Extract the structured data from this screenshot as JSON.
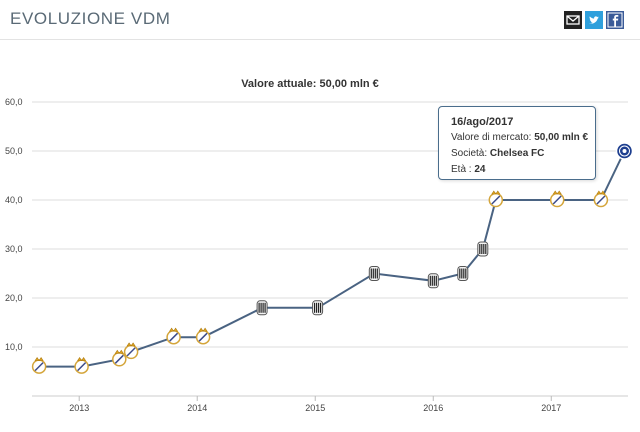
{
  "header": {
    "title": "EVOLUZIONE VDM",
    "share": [
      {
        "name": "email-share-icon",
        "color": "#222222"
      },
      {
        "name": "twitter-share-icon",
        "color": "#2fa0dc"
      },
      {
        "name": "facebook-share-icon",
        "color": "#3b5b98"
      }
    ]
  },
  "chart_data": {
    "type": "line",
    "title": "Valore attuale: 50,00 mln €",
    "xlabel": "",
    "ylabel": "",
    "ylim": [
      0,
      60
    ],
    "yticks": [
      "10,0",
      "20,0",
      "30,0",
      "40,0",
      "50,0",
      "60,0"
    ],
    "ytick_values": [
      10,
      20,
      30,
      40,
      50,
      60
    ],
    "xlim": [
      2012.6,
      2017.65
    ],
    "xticks": [
      "2013",
      "2014",
      "2015",
      "2016",
      "2017"
    ],
    "xtick_values": [
      2013,
      2014,
      2015,
      2016,
      2017
    ],
    "grid": true,
    "line_color": "#4a6382",
    "series": [
      {
        "values": [
          {
            "x": 2012.66,
            "y": 6,
            "club": "Real Madrid"
          },
          {
            "x": 2013.02,
            "y": 6,
            "club": "Real Madrid"
          },
          {
            "x": 2013.34,
            "y": 7.5,
            "club": "Real Madrid"
          },
          {
            "x": 2013.44,
            "y": 9,
            "club": "Real Madrid"
          },
          {
            "x": 2013.8,
            "y": 12,
            "club": "Real Madrid"
          },
          {
            "x": 2014.05,
            "y": 12,
            "club": "Real Madrid"
          },
          {
            "x": 2014.55,
            "y": 18,
            "club": "Juventus"
          },
          {
            "x": 2015.02,
            "y": 18,
            "club": "Juventus"
          },
          {
            "x": 2015.5,
            "y": 25,
            "club": "Juventus"
          },
          {
            "x": 2016.0,
            "y": 23.5,
            "club": "Juventus"
          },
          {
            "x": 2016.25,
            "y": 25,
            "club": "Juventus"
          },
          {
            "x": 2016.42,
            "y": 30,
            "club": "Juventus"
          },
          {
            "x": 2016.53,
            "y": 40,
            "club": "Real Madrid"
          },
          {
            "x": 2017.05,
            "y": 40,
            "club": "Real Madrid"
          },
          {
            "x": 2017.42,
            "y": 40,
            "club": "Real Madrid"
          },
          {
            "x": 2017.62,
            "y": 50,
            "club": "Chelsea FC"
          }
        ]
      }
    ]
  },
  "tooltip": {
    "date": "16/ago/2017",
    "market_label": "Valore di mercato:",
    "market_value": "50,00 mln €",
    "club_label": "Società:",
    "club_value": "Chelsea FC",
    "age_label": "Età :",
    "age_value": "24"
  }
}
